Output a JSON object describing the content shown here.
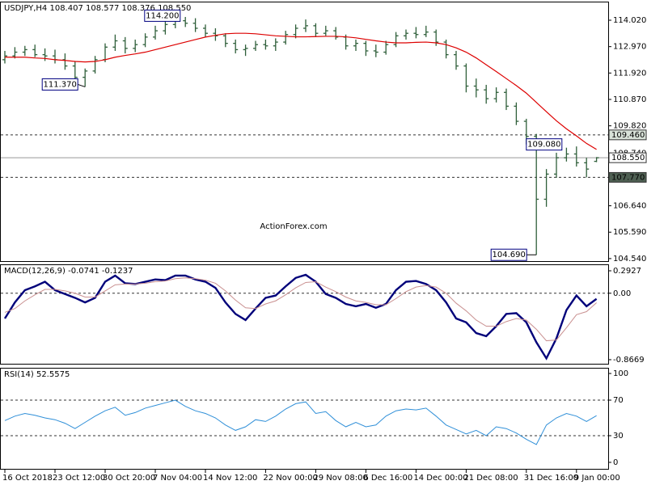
{
  "chart_data": [
    {
      "type": "ohlc",
      "title": "USDJPY,H4  108.407 108.577 108.376 108.550",
      "watermark": "ActionForex.com",
      "color": "#2f5f3a",
      "categories": [
        "16 Oct 2018",
        null,
        null,
        null,
        null,
        "23 Oct 12:00",
        null,
        null,
        null,
        null,
        "30 Oct 20:00",
        null,
        null,
        null,
        null,
        "7 Nov 04:00",
        null,
        null,
        null,
        null,
        "14 Nov 12:00",
        null,
        null,
        null,
        null,
        null,
        "22 Nov 00:00",
        null,
        null,
        null,
        null,
        "29 Nov 08:00",
        null,
        null,
        null,
        null,
        "6 Dec 16:00",
        null,
        null,
        null,
        null,
        "14 Dec 00:00",
        null,
        null,
        null,
        null,
        "21 Dec 08:00",
        null,
        null,
        null,
        null,
        null,
        "31 Dec 16:00",
        null,
        null,
        null,
        null,
        "9 Jan 00:00",
        null,
        null
      ],
      "open": [
        112.45,
        112.6,
        112.75,
        112.85,
        112.65,
        112.6,
        112.45,
        112.2,
        111.75,
        112.0,
        112.45,
        112.95,
        113.2,
        112.9,
        113.05,
        113.35,
        113.6,
        113.85,
        114.0,
        113.9,
        113.7,
        113.5,
        113.4,
        113.1,
        112.85,
        112.9,
        113.05,
        113.0,
        113.15,
        113.45,
        113.7,
        113.8,
        113.5,
        113.6,
        113.35,
        113.0,
        113.1,
        112.8,
        112.75,
        113.05,
        113.4,
        113.5,
        113.45,
        113.55,
        113.15,
        112.65,
        112.2,
        111.4,
        111.25,
        110.9,
        111.15,
        110.6,
        110.0,
        109.4,
        106.9,
        107.9,
        108.55,
        108.7,
        108.35,
        108.407
      ],
      "high": [
        112.8,
        112.95,
        113.0,
        113.05,
        112.9,
        112.85,
        112.7,
        112.4,
        112.1,
        112.6,
        113.1,
        113.45,
        113.35,
        113.25,
        113.5,
        113.8,
        114.05,
        114.2,
        114.15,
        114.1,
        113.85,
        113.7,
        113.5,
        113.25,
        113.05,
        113.2,
        113.25,
        113.3,
        113.6,
        113.85,
        114.05,
        113.9,
        113.8,
        113.75,
        113.45,
        113.25,
        113.2,
        113.05,
        113.2,
        113.55,
        113.65,
        113.75,
        113.8,
        113.65,
        113.25,
        112.8,
        112.3,
        111.7,
        111.45,
        111.35,
        111.3,
        110.75,
        110.1,
        109.5,
        108.1,
        108.75,
        108.95,
        109.0,
        108.55,
        108.577
      ],
      "low": [
        112.3,
        112.5,
        112.6,
        112.55,
        112.4,
        112.3,
        112.05,
        111.6,
        111.37,
        111.9,
        112.35,
        112.8,
        112.7,
        112.75,
        112.95,
        113.25,
        113.45,
        113.7,
        113.75,
        113.55,
        113.35,
        113.2,
        112.95,
        112.7,
        112.6,
        112.8,
        112.85,
        112.8,
        113.05,
        113.3,
        113.55,
        113.35,
        113.4,
        113.25,
        112.85,
        112.8,
        112.6,
        112.55,
        112.65,
        112.95,
        113.25,
        113.3,
        113.35,
        113.0,
        112.5,
        112.05,
        111.15,
        110.95,
        110.7,
        110.75,
        110.45,
        109.85,
        109.08,
        104.69,
        106.6,
        107.75,
        108.4,
        108.2,
        107.77,
        108.376
      ],
      "close": [
        112.6,
        112.75,
        112.85,
        112.65,
        112.6,
        112.45,
        112.2,
        111.75,
        112.0,
        112.45,
        112.95,
        113.2,
        112.9,
        113.05,
        113.35,
        113.6,
        113.85,
        114.0,
        113.9,
        113.7,
        113.5,
        113.4,
        113.1,
        112.85,
        112.9,
        113.05,
        113.0,
        113.15,
        113.45,
        113.7,
        113.8,
        113.5,
        113.6,
        113.35,
        113.0,
        113.1,
        112.8,
        112.75,
        113.05,
        113.4,
        113.5,
        113.45,
        113.55,
        113.15,
        112.65,
        112.2,
        111.4,
        111.25,
        110.9,
        111.15,
        110.6,
        110.0,
        109.4,
        106.9,
        107.9,
        108.55,
        108.7,
        108.35,
        108.1,
        108.55
      ],
      "overlays": [
        {
          "color": "#dd0000",
          "values": [
            112.55,
            112.55,
            112.55,
            112.52,
            112.5,
            112.45,
            112.42,
            112.38,
            112.36,
            112.38,
            112.45,
            112.55,
            112.62,
            112.68,
            112.75,
            112.85,
            112.95,
            113.05,
            113.15,
            113.25,
            113.35,
            113.42,
            113.48,
            113.5,
            113.5,
            113.48,
            113.44,
            113.4,
            113.38,
            113.36,
            113.36,
            113.37,
            113.38,
            113.38,
            113.36,
            113.32,
            113.26,
            113.2,
            113.15,
            113.12,
            113.12,
            113.14,
            113.15,
            113.12,
            113.05,
            112.92,
            112.75,
            112.52,
            112.25,
            111.98,
            111.7,
            111.42,
            111.12,
            110.75,
            110.38,
            110.02,
            109.7,
            109.42,
            109.12,
            108.88
          ]
        }
      ],
      "ylim": [
        104.44,
        114.76
      ],
      "yticks": [
        {
          "value": 114.02,
          "label": "114.020"
        },
        {
          "value": 112.97,
          "label": "112.970"
        },
        {
          "value": 111.92,
          "label": "111.920"
        },
        {
          "value": 110.87,
          "label": "110.870"
        },
        {
          "value": 109.82,
          "label": "109.820"
        },
        {
          "value": 108.74,
          "label": "108.740"
        },
        {
          "value": 106.64,
          "label": "106.640"
        },
        {
          "value": 105.59,
          "label": "105.590"
        },
        {
          "value": 104.54,
          "label": "104.540"
        }
      ],
      "levels": [
        {
          "value": 109.46,
          "label": "109.460",
          "style": "dashed"
        },
        {
          "value": 108.55,
          "label": "108.550",
          "style": "solid"
        },
        {
          "value": 107.77,
          "label": "107.770",
          "style": "dashed"
        }
      ],
      "annotations": [
        {
          "value": 114.2,
          "label": "114.200",
          "index": 17
        },
        {
          "value": 111.37,
          "label": "111.370",
          "index": 8
        },
        {
          "value": 109.08,
          "label": "109.080",
          "index": 52
        },
        {
          "value": 104.69,
          "label": "104.690",
          "index": 53
        }
      ]
    },
    {
      "type": "line",
      "title": "MACD(12,26,9) -0.0741 -0.1237",
      "series": [
        {
          "color": "#00007a",
          "values": [
            -0.33,
            -0.12,
            0.04,
            0.09,
            0.15,
            0.04,
            -0.01,
            -0.06,
            -0.12,
            -0.06,
            0.15,
            0.23,
            0.13,
            0.12,
            0.15,
            0.18,
            0.17,
            0.23,
            0.23,
            0.18,
            0.15,
            0.07,
            -0.12,
            -0.27,
            -0.35,
            -0.2,
            -0.06,
            -0.03,
            0.09,
            0.2,
            0.24,
            0.15,
            -0.01,
            -0.06,
            -0.14,
            -0.17,
            -0.14,
            -0.19,
            -0.14,
            0.04,
            0.15,
            0.16,
            0.12,
            0.04,
            -0.12,
            -0.33,
            -0.38,
            -0.52,
            -0.56,
            -0.43,
            -0.27,
            -0.26,
            -0.38,
            -0.64,
            -0.85,
            -0.59,
            -0.22,
            -0.03,
            -0.17,
            -0.0741
          ]
        },
        {
          "color": "#c99090",
          "values": [
            -0.25,
            -0.2,
            -0.1,
            -0.02,
            0.05,
            0.05,
            0.03,
            0.0,
            -0.05,
            -0.05,
            0.03,
            0.11,
            0.12,
            0.12,
            0.13,
            0.15,
            0.16,
            0.19,
            0.2,
            0.19,
            0.17,
            0.13,
            0.03,
            -0.09,
            -0.19,
            -0.2,
            -0.14,
            -0.1,
            -0.02,
            0.07,
            0.14,
            0.15,
            0.08,
            0.02,
            -0.05,
            -0.1,
            -0.12,
            -0.15,
            -0.15,
            -0.07,
            0.02,
            0.08,
            0.1,
            0.08,
            0.0,
            -0.13,
            -0.23,
            -0.35,
            -0.43,
            -0.43,
            -0.37,
            -0.33,
            -0.35,
            -0.47,
            -0.62,
            -0.61,
            -0.45,
            -0.28,
            -0.24,
            -0.1237
          ]
        }
      ],
      "ylim": [
        -0.92,
        0.377
      ],
      "yticks": [
        0.2927,
        {
          "value": 0,
          "label": "0.00"
        },
        -0.8669
      ],
      "levels": [
        {
          "value": 0,
          "style": "dashed"
        }
      ]
    },
    {
      "type": "line",
      "title": "RSI(14) 52.5575",
      "series": [
        {
          "color": "#2f8fd8",
          "values": [
            47,
            52,
            55,
            53,
            50,
            48,
            44,
            38,
            45,
            52,
            58,
            62,
            53,
            56,
            61,
            64,
            67,
            70,
            63,
            58,
            55,
            50,
            42,
            36,
            40,
            48,
            46,
            52,
            60,
            66,
            68,
            55,
            57,
            47,
            40,
            45,
            40,
            42,
            52,
            58,
            60,
            59,
            61,
            52,
            42,
            37,
            32,
            36,
            30,
            40,
            38,
            33,
            26,
            20,
            42,
            50,
            55,
            52,
            46,
            52.5575
          ]
        }
      ],
      "ylim": [
        -7.3,
        106.4
      ],
      "yticks": [
        100,
        70,
        30,
        0
      ],
      "levels": [
        {
          "value": 70,
          "style": "dashed"
        },
        {
          "value": 30,
          "style": "dashed"
        }
      ]
    }
  ]
}
